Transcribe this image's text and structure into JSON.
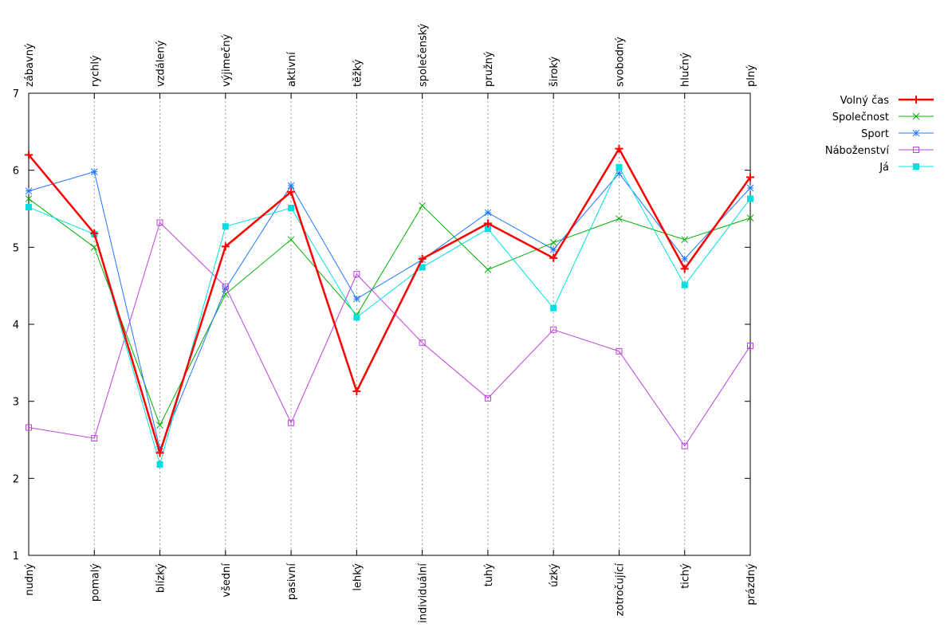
{
  "chart_data": {
    "type": "line",
    "top_labels": [
      "zábavný",
      "rychlý",
      "vzdálený",
      "výjimečný",
      "aktivní",
      "těžký",
      "společenský",
      "pružný",
      "široký",
      "svobodný",
      "hlučný",
      "plný"
    ],
    "bottom_labels": [
      "nudný",
      "pomalý",
      "blízký",
      "všední",
      "pasivní",
      "lehký",
      "individuální",
      "tuhý",
      "úzký",
      "zotročující",
      "tichý",
      "prázdný"
    ],
    "x": [
      1,
      2,
      3,
      4,
      5,
      6,
      7,
      8,
      9,
      10,
      11,
      12
    ],
    "ylim": [
      1,
      7
    ],
    "yticks": [
      "1",
      "2",
      "3",
      "4",
      "5",
      "6",
      "7"
    ],
    "grid": "vertical dotted",
    "legend_position": "right",
    "series": [
      {
        "name": "Volný čas",
        "color": "#ff0000",
        "marker": "plus",
        "bold": true,
        "values": [
          6.2,
          5.18,
          2.33,
          5.01,
          5.72,
          3.13,
          4.85,
          5.31,
          4.86,
          6.28,
          4.72,
          5.91
        ]
      },
      {
        "name": "Společnost",
        "color": "#00b000",
        "marker": "cross",
        "values": [
          5.63,
          5.0,
          2.69,
          4.39,
          5.1,
          4.12,
          5.54,
          4.71,
          5.06,
          5.37,
          5.1,
          5.38
        ]
      },
      {
        "name": "Sport",
        "color": "#1e78ff",
        "marker": "star",
        "values": [
          5.73,
          5.98,
          2.38,
          4.46,
          5.8,
          4.33,
          4.84,
          5.45,
          4.97,
          5.96,
          4.85,
          5.77
        ]
      },
      {
        "name": "Náboženství",
        "color": "#c040e0",
        "marker": "square-open",
        "values": [
          2.66,
          2.52,
          5.32,
          4.49,
          2.72,
          4.65,
          3.76,
          3.04,
          3.93,
          3.65,
          2.42,
          3.72
        ]
      },
      {
        "name": "Já",
        "color": "#00e0e0",
        "marker": "square-filled",
        "values": [
          5.52,
          5.17,
          2.18,
          5.27,
          5.51,
          4.09,
          4.74,
          5.24,
          4.21,
          6.04,
          4.51,
          5.63
        ]
      }
    ]
  }
}
